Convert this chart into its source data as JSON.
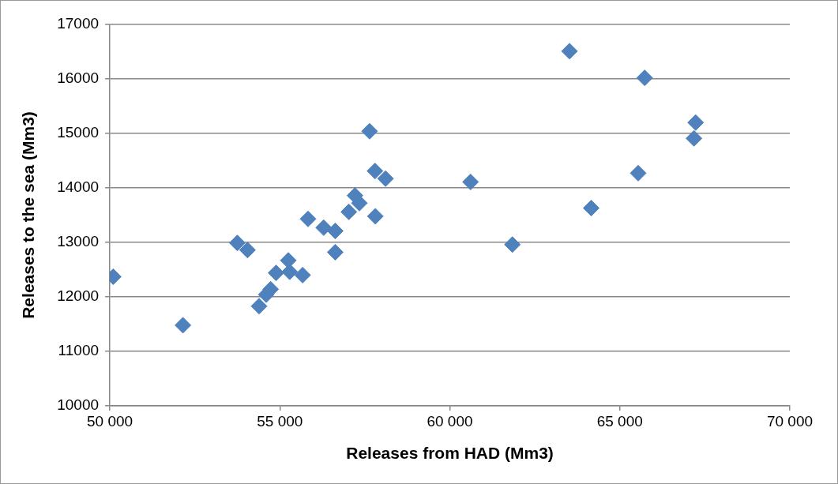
{
  "chart_data": {
    "type": "scatter",
    "xlabel": "Releases from HAD (Mm3)",
    "ylabel": "Releases to the sea (Mm3)",
    "x": [
      50100,
      52150,
      53750,
      54050,
      57640,
      57800,
      58110,
      57210,
      57340,
      57030,
      57810,
      55830,
      56290,
      56630,
      56630,
      55250,
      54890,
      55290,
      55670,
      54730,
      54600,
      54390,
      63520,
      65730,
      67230,
      67180,
      65540,
      60610,
      64160,
      61840
    ],
    "values": [
      12370,
      11480,
      12990,
      12860,
      15040,
      14310,
      14170,
      13860,
      13720,
      13560,
      13480,
      13430,
      13270,
      13210,
      12820,
      12670,
      12440,
      12460,
      12400,
      12140,
      12040,
      11830,
      16510,
      16020,
      15200,
      14910,
      14270,
      14110,
      13630,
      12960
    ],
    "color": "#4f81bd",
    "marker": "diamond",
    "xlim": [
      50000,
      70000
    ],
    "xticks": [
      {
        "value": 50000,
        "label": "50 000"
      },
      {
        "value": 55000,
        "label": "55 000"
      },
      {
        "value": 60000,
        "label": "60 000"
      },
      {
        "value": 65000,
        "label": "65 000"
      },
      {
        "value": 70000,
        "label": "70 000"
      }
    ],
    "ylim": [
      10000,
      17000
    ],
    "yticks": [
      10000,
      11000,
      12000,
      13000,
      14000,
      15000,
      16000,
      17000
    ],
    "grid": "y",
    "legend": false
  }
}
